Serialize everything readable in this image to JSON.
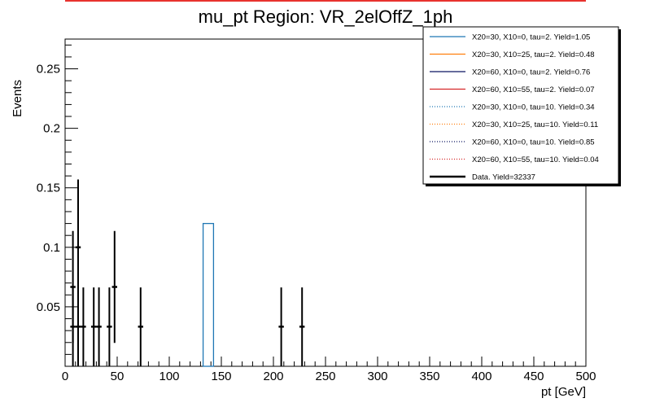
{
  "chart_data": {
    "type": "histogram",
    "title": "mu_pt Region: VR_2elOffZ_1ph",
    "xlabel": "pt [GeV]",
    "ylabel": "Events",
    "xlim": [
      0,
      500
    ],
    "ylim": [
      0,
      0.275
    ],
    "x_ticks": [
      0,
      50,
      100,
      150,
      200,
      250,
      300,
      350,
      400,
      450,
      500
    ],
    "y_ticks": [
      0.05,
      0.1,
      0.15,
      0.2,
      0.25
    ],
    "grid": false,
    "legend_position": "top-right",
    "series": [
      {
        "name": "X20=30, X10=0, tau=2. Yield=1.05",
        "color": "#1f77b4",
        "style": "solid",
        "bins": [
          {
            "x0": 132.5,
            "x1": 142.5,
            "y": 0.12
          }
        ]
      },
      {
        "name": "X20=30, X10=25, tau=2. Yield=0.48",
        "color": "#ff7f0e",
        "style": "solid",
        "bins": []
      },
      {
        "name": "X20=60, X10=0, tau=2. Yield=0.76",
        "color": "#0b1560",
        "style": "solid",
        "bins": []
      },
      {
        "name": "X20=60, X10=55, tau=2. Yield=0.07",
        "color": "#d62728",
        "style": "solid",
        "bins": []
      },
      {
        "name": "X20=30, X10=0, tau=10. Yield=0.34",
        "color": "#1f77b4",
        "style": "dotted",
        "bins": []
      },
      {
        "name": "X20=30, X10=25, tau=10. Yield=0.11",
        "color": "#ff7f0e",
        "style": "dotted",
        "bins": []
      },
      {
        "name": "X20=60, X10=0, tau=10. Yield=0.85",
        "color": "#0b1560",
        "style": "dotted",
        "bins": []
      },
      {
        "name": "X20=60, X10=55, tau=10. Yield=0.04",
        "color": "#d62728",
        "style": "dotted",
        "bins": []
      }
    ],
    "data": {
      "name": "Data. Yield=32337",
      "color": "#000000",
      "xerr": 2.5,
      "points": [
        {
          "x": 7.5,
          "y": 0.0667,
          "yerr": 0.047
        },
        {
          "x": 7.5,
          "y": 0.0333,
          "yerr": 0.033
        },
        {
          "x": 12.5,
          "y": 0.1,
          "yerr": 0.057
        },
        {
          "x": 12.5,
          "y": 0.0333,
          "yerr": 0.033
        },
        {
          "x": 17.5,
          "y": 0.0333,
          "yerr": 0.033
        },
        {
          "x": 27.5,
          "y": 0.0333,
          "yerr": 0.033
        },
        {
          "x": 32.5,
          "y": 0.0333,
          "yerr": 0.033
        },
        {
          "x": 42.5,
          "y": 0.0333,
          "yerr": 0.033
        },
        {
          "x": 47.5,
          "y": 0.0667,
          "yerr": 0.047
        },
        {
          "x": 72.5,
          "y": 0.0333,
          "yerr": 0.033
        },
        {
          "x": 207.5,
          "y": 0.0333,
          "yerr": 0.033
        },
        {
          "x": 227.5,
          "y": 0.0333,
          "yerr": 0.033
        }
      ]
    }
  }
}
